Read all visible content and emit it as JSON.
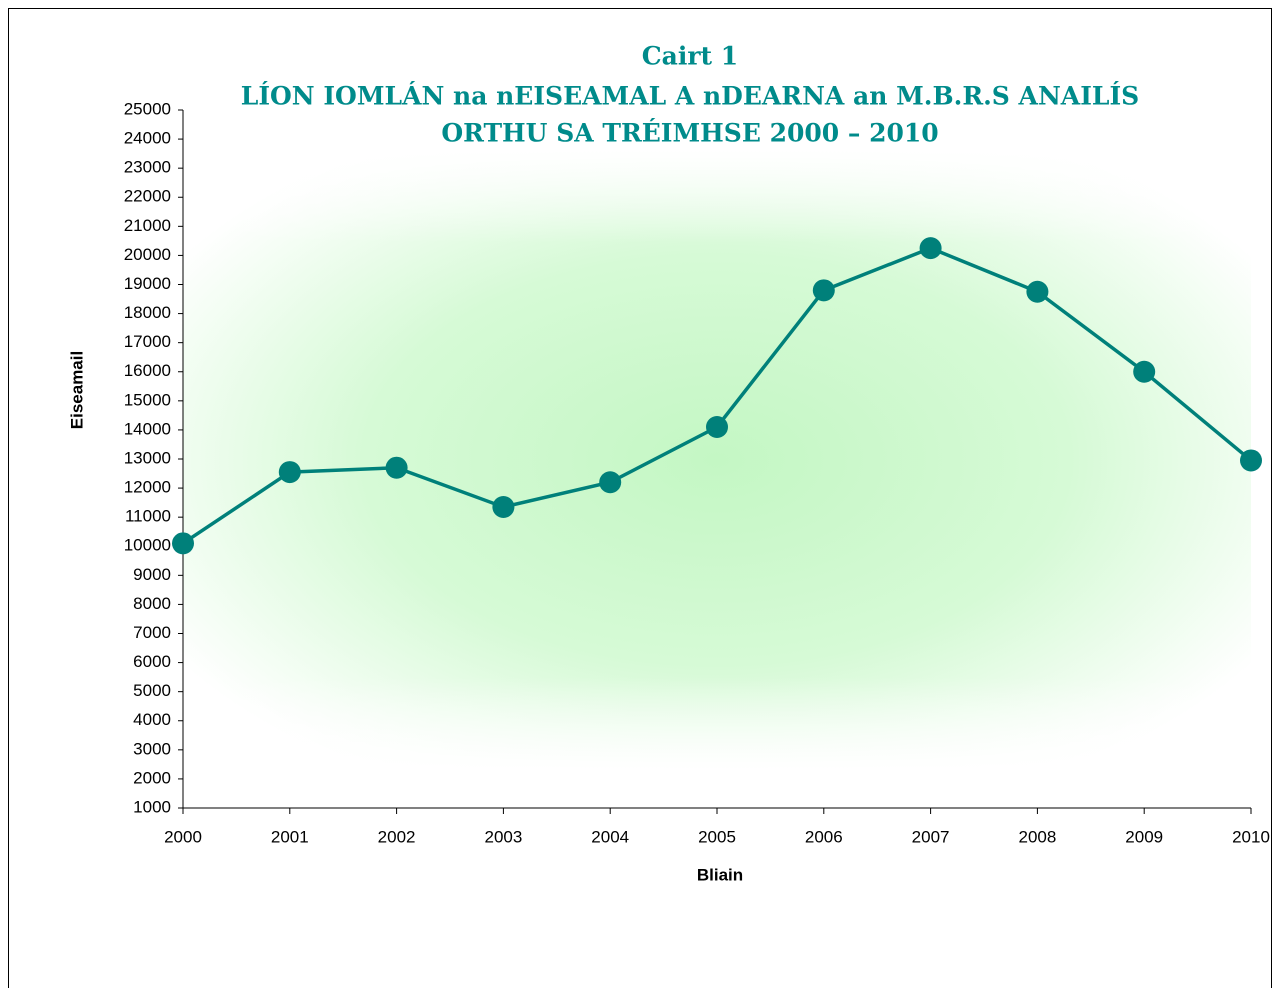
{
  "chart_data": {
    "type": "line",
    "title": [
      "Cairt 1",
      "LÍON IOMLÁN na nEISEAMAL A nDEARNA an M.B.R.S ANAILÍS",
      "ORTHU SA TRÉIMHSE 2000 – 2010"
    ],
    "x_label": "Bliain",
    "y_label": "Eiseamail",
    "categories": [
      "2000",
      "2001",
      "2002",
      "2003",
      "2004",
      "2005",
      "2006",
      "2007",
      "2008",
      "2009",
      "2010"
    ],
    "values": [
      10100,
      12550,
      12700,
      11350,
      12200,
      14100,
      18800,
      20250,
      18750,
      16000,
      12950
    ],
    "color": "#00807a",
    "ylim": [
      1000,
      25000
    ],
    "yticks": [
      1000,
      2000,
      3000,
      4000,
      5000,
      6000,
      7000,
      8000,
      9000,
      10000,
      11000,
      12000,
      13000,
      14000,
      15000,
      16000,
      17000,
      18000,
      19000,
      20000,
      21000,
      22000,
      23000,
      24000,
      25000
    ],
    "grid": false
  }
}
